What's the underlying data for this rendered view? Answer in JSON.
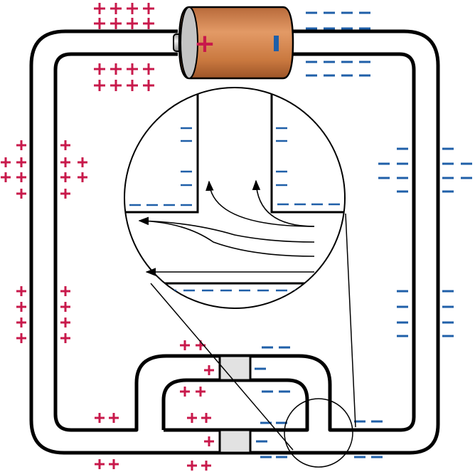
{
  "diagram": {
    "description_free": true,
    "battery": {
      "positive_terminal_symbol": "+",
      "negative_terminal_symbol": "−",
      "body_color": "#d2834e"
    },
    "colors": {
      "positive_charge": "#c8194b",
      "negative_charge": "#1f5fa8",
      "wire": "#000000",
      "resistor_block": "#e2e2e2",
      "field_arrow": "#000000"
    },
    "charge_symbols": {
      "positive": "+",
      "negative": "−"
    }
  }
}
